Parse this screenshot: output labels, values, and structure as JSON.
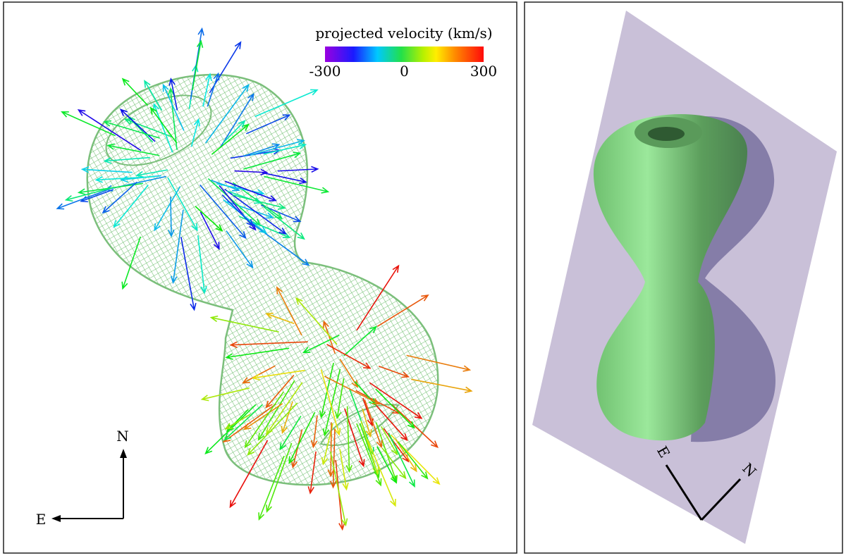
{
  "left_panel": {
    "colorbar": {
      "title": "projected velocity (km/s)",
      "ticks": [
        -300,
        0,
        300
      ]
    },
    "compass": {
      "north": "N",
      "east": "E"
    }
  },
  "right_panel": {
    "compass": {
      "east": "E",
      "north": "N"
    }
  }
}
